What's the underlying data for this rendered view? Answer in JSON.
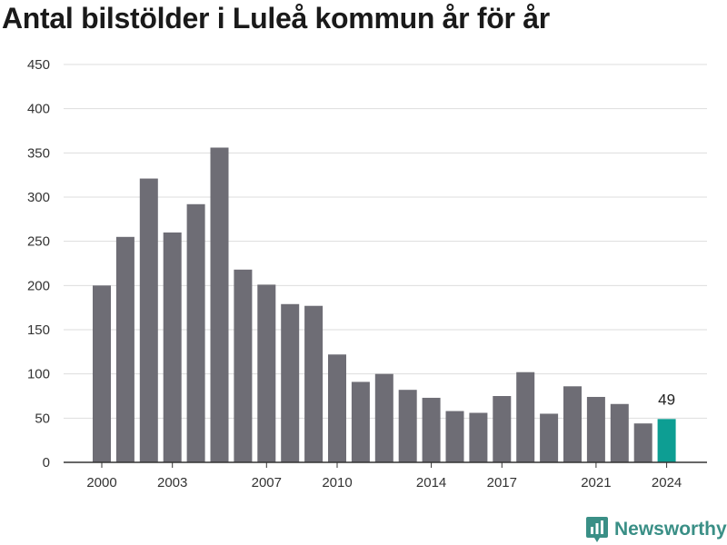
{
  "title": "Antal bilstölder i Luleå kommun år för år",
  "brand": {
    "name": "Newsworthy",
    "logo_icon": "newsworthy-logo-icon"
  },
  "colors": {
    "bar": "#6e6d75",
    "highlight": "#0d9e93",
    "grid": "#dddddd",
    "axis": "#333333",
    "text": "#333333"
  },
  "chart_data": {
    "type": "bar",
    "title": "Antal bilstölder i Luleå kommun år för år",
    "xlabel": "",
    "ylabel": "",
    "categories": [
      2000,
      2001,
      2002,
      2003,
      2004,
      2005,
      2006,
      2007,
      2008,
      2009,
      2010,
      2011,
      2012,
      2013,
      2014,
      2015,
      2016,
      2017,
      2018,
      2019,
      2020,
      2021,
      2022,
      2023,
      2024
    ],
    "values": [
      200,
      255,
      321,
      260,
      292,
      356,
      218,
      201,
      179,
      177,
      122,
      91,
      100,
      82,
      73,
      58,
      56,
      75,
      102,
      55,
      86,
      74,
      66,
      44,
      49
    ],
    "x_tick_labels": [
      "2000",
      "2003",
      "2007",
      "2010",
      "2014",
      "2017",
      "2021",
      "2024"
    ],
    "y_ticks": [
      0,
      50,
      100,
      150,
      200,
      250,
      300,
      350,
      400,
      450
    ],
    "ylim": [
      0,
      450
    ],
    "grid": "horizontal",
    "highlight": {
      "category": 2024,
      "label": "49"
    }
  }
}
